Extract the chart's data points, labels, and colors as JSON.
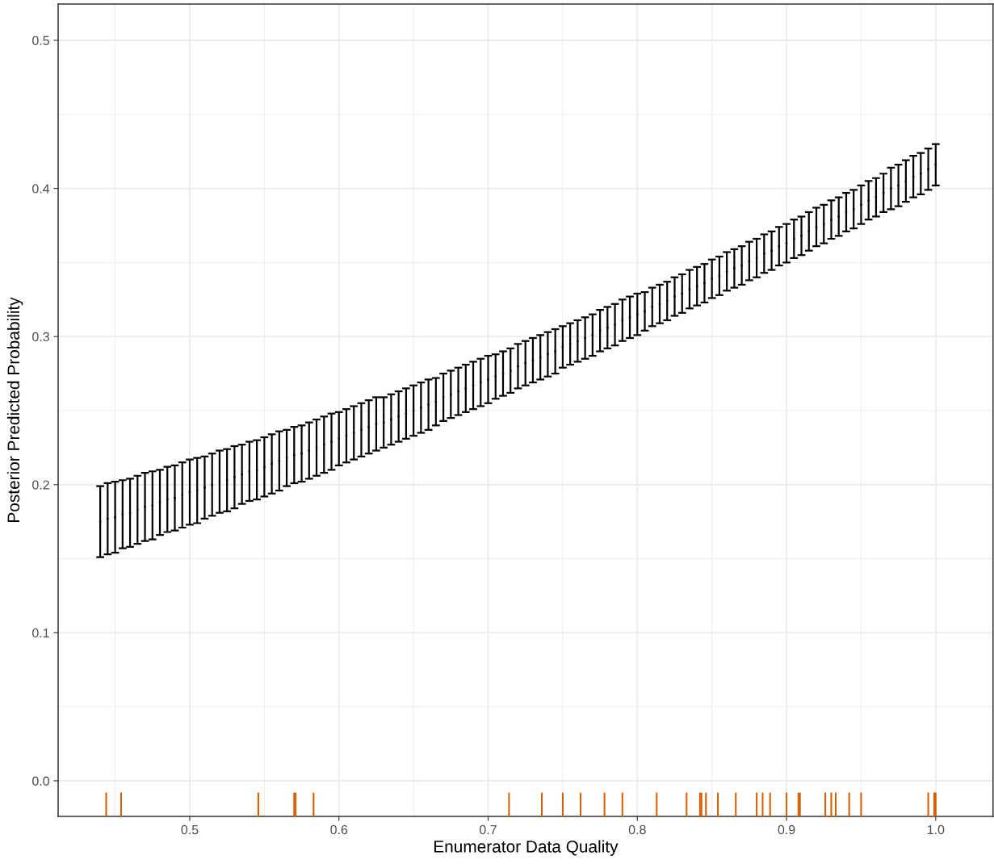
{
  "chart_data": {
    "type": "scatter",
    "xlabel": "Enumerator Data Quality",
    "ylabel": "Posterior Predicted Probability",
    "xlim": [
      0.4118,
      1.0384
    ],
    "ylim": [
      -0.024,
      0.5245
    ],
    "xticks": [
      {
        "value": 0.45,
        "label": null
      },
      0.5,
      {
        "value": 0.55,
        "label": null
      },
      0.6,
      {
        "value": 0.65,
        "label": null
      },
      0.7,
      {
        "value": 0.75,
        "label": null
      },
      0.8,
      {
        "value": 0.85,
        "label": null
      },
      0.9,
      {
        "value": 0.95,
        "label": null
      },
      {
        "value": 1,
        "label": "1.0"
      }
    ],
    "yticks": [
      {
        "value": 0,
        "label": "0.0"
      },
      {
        "value": 0.05,
        "label": null
      },
      0.1,
      {
        "value": 0.15,
        "label": null
      },
      0.2,
      {
        "value": 0.25,
        "label": null
      },
      0.3,
      {
        "value": 0.35,
        "label": null
      },
      0.4,
      {
        "value": 0.45,
        "label": null
      },
      0.5
    ],
    "grid": true,
    "legend": false,
    "marker": "circle",
    "series": [
      {
        "color": "#000000",
        "x": [
          0.44,
          0.445,
          0.45,
          0.455,
          0.46,
          0.465,
          0.47,
          0.475,
          0.48,
          0.485,
          0.49,
          0.495,
          0.5,
          0.505,
          0.51,
          0.515,
          0.52,
          0.525,
          0.53,
          0.535,
          0.54,
          0.545,
          0.55,
          0.555,
          0.56,
          0.565,
          0.57,
          0.575,
          0.58,
          0.585,
          0.59,
          0.595,
          0.6,
          0.605,
          0.61,
          0.615,
          0.62,
          0.625,
          0.63,
          0.635,
          0.64,
          0.645,
          0.65,
          0.655,
          0.66,
          0.665,
          0.67,
          0.675,
          0.68,
          0.685,
          0.69,
          0.695,
          0.7,
          0.705,
          0.71,
          0.715,
          0.72,
          0.725,
          0.73,
          0.735,
          0.74,
          0.745,
          0.75,
          0.755,
          0.76,
          0.765,
          0.77,
          0.775,
          0.78,
          0.785,
          0.79,
          0.795,
          0.8,
          0.805,
          0.81,
          0.815,
          0.82,
          0.825,
          0.83,
          0.835,
          0.84,
          0.845,
          0.85,
          0.855,
          0.86,
          0.865,
          0.87,
          0.875,
          0.88,
          0.885,
          0.89,
          0.895,
          0.9,
          0.905,
          0.91,
          0.915,
          0.92,
          0.925,
          0.93,
          0.935,
          0.94,
          0.945,
          0.95,
          0.955,
          0.96,
          0.965,
          0.97,
          0.975,
          0.98,
          0.985,
          0.99,
          0.995,
          1.0
        ],
        "values": [
          0.175,
          0.177,
          0.178,
          0.18,
          0.181,
          0.183,
          0.185,
          0.186,
          0.188,
          0.19,
          0.191,
          0.193,
          0.195,
          0.196,
          0.198,
          0.2,
          0.202,
          0.203,
          0.205,
          0.207,
          0.209,
          0.21,
          0.212,
          0.214,
          0.216,
          0.218,
          0.22,
          0.221,
          0.223,
          0.225,
          0.227,
          0.229,
          0.231,
          0.233,
          0.235,
          0.237,
          0.239,
          0.241,
          0.242,
          0.244,
          0.246,
          0.248,
          0.25,
          0.252,
          0.254,
          0.256,
          0.259,
          0.261,
          0.263,
          0.265,
          0.267,
          0.269,
          0.271,
          0.273,
          0.275,
          0.277,
          0.28,
          0.282,
          0.284,
          0.286,
          0.288,
          0.29,
          0.293,
          0.295,
          0.297,
          0.299,
          0.301,
          0.304,
          0.306,
          0.308,
          0.311,
          0.313,
          0.315,
          0.317,
          0.32,
          0.322,
          0.324,
          0.327,
          0.329,
          0.332,
          0.334,
          0.336,
          0.339,
          0.341,
          0.344,
          0.346,
          0.348,
          0.351,
          0.353,
          0.356,
          0.358,
          0.361,
          0.363,
          0.366,
          0.368,
          0.371,
          0.374,
          0.376,
          0.379,
          0.381,
          0.384,
          0.386,
          0.389,
          0.392,
          0.394,
          0.397,
          0.4,
          0.402,
          0.405,
          0.408,
          0.41,
          0.413,
          0.416
        ],
        "errors": [
          0.024,
          0.024,
          0.024,
          0.023,
          0.023,
          0.023,
          0.023,
          0.023,
          0.022,
          0.022,
          0.022,
          0.022,
          0.022,
          0.022,
          0.021,
          0.021,
          0.021,
          0.021,
          0.021,
          0.02,
          0.02,
          0.02,
          0.02,
          0.02,
          0.02,
          0.019,
          0.019,
          0.019,
          0.019,
          0.019,
          0.019,
          0.019,
          0.018,
          0.018,
          0.018,
          0.018,
          0.018,
          0.018,
          0.017,
          0.017,
          0.017,
          0.017,
          0.017,
          0.017,
          0.017,
          0.016,
          0.016,
          0.016,
          0.016,
          0.016,
          0.016,
          0.016,
          0.016,
          0.015,
          0.015,
          0.015,
          0.015,
          0.015,
          0.015,
          0.015,
          0.015,
          0.015,
          0.014,
          0.014,
          0.014,
          0.014,
          0.014,
          0.014,
          0.014,
          0.014,
          0.014,
          0.014,
          0.014,
          0.013,
          0.013,
          0.013,
          0.013,
          0.013,
          0.013,
          0.013,
          0.013,
          0.013,
          0.013,
          0.013,
          0.013,
          0.013,
          0.013,
          0.013,
          0.013,
          0.013,
          0.013,
          0.013,
          0.013,
          0.013,
          0.013,
          0.013,
          0.013,
          0.013,
          0.013,
          0.013,
          0.013,
          0.013,
          0.013,
          0.013,
          0.013,
          0.013,
          0.014,
          0.014,
          0.014,
          0.014,
          0.014,
          0.014,
          0.014
        ]
      },
      {
        "type": "bar",
        "color": "#d55e00",
        "x": [
          0.444,
          0.454,
          0.546,
          0.57,
          0.571,
          0.583,
          0.714,
          0.736,
          0.75,
          0.762,
          0.778,
          0.79,
          0.813,
          0.833,
          0.842,
          0.843,
          0.846,
          0.854,
          0.866,
          0.88,
          0.884,
          0.889,
          0.9,
          0.908,
          0.909,
          0.926,
          0.93,
          0.933,
          0.942,
          0.95,
          0.995,
          0.999,
          1.0
        ],
        "base": [
          -0.024,
          -0.024,
          -0.024,
          -0.024,
          -0.024,
          -0.024,
          -0.024,
          -0.024,
          -0.024,
          -0.024,
          -0.024,
          -0.024,
          -0.024,
          -0.024,
          -0.024,
          -0.024,
          -0.024,
          -0.024,
          -0.024,
          -0.024,
          -0.024,
          -0.024,
          -0.024,
          -0.024,
          -0.024,
          -0.024,
          -0.024,
          -0.024,
          -0.024,
          -0.024,
          -0.024,
          -0.024,
          -0.024
        ],
        "values": [
          0.016,
          0.016,
          0.016,
          0.016,
          0.016,
          0.016,
          0.016,
          0.016,
          0.016,
          0.016,
          0.016,
          0.016,
          0.016,
          0.016,
          0.016,
          0.016,
          0.016,
          0.016,
          0.016,
          0.016,
          0.016,
          0.016,
          0.016,
          0.016,
          0.016,
          0.016,
          0.016,
          0.016,
          0.016,
          0.016,
          0.016,
          0.016,
          0.016
        ]
      }
    ]
  }
}
